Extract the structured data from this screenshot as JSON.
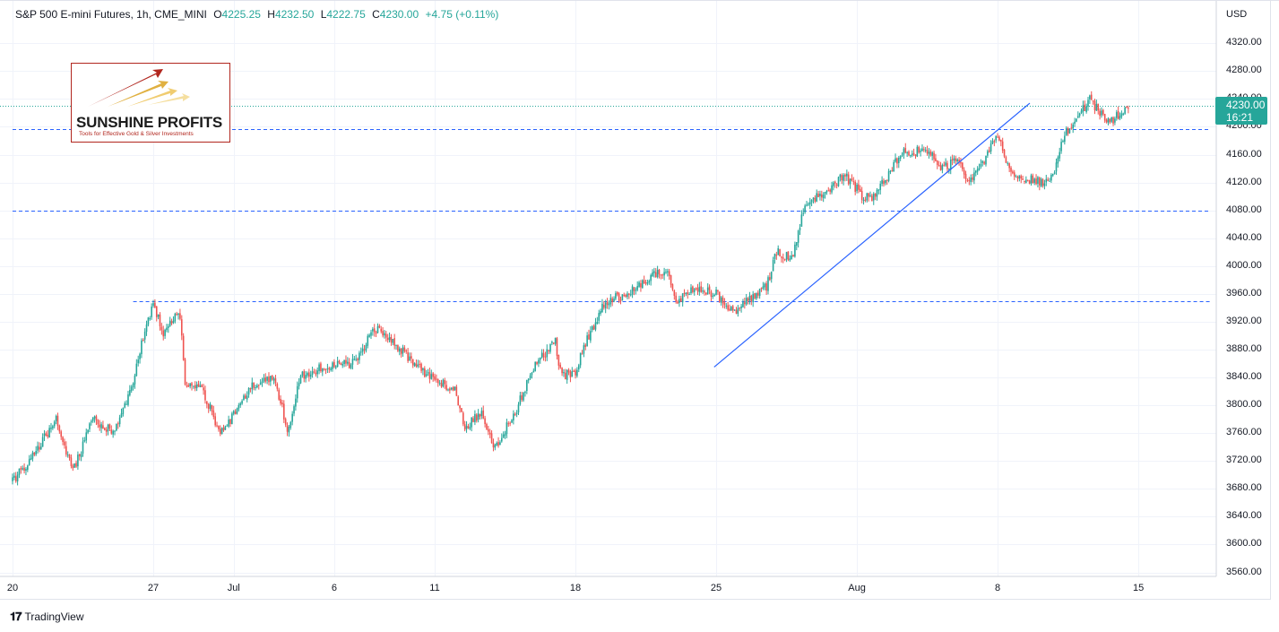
{
  "header": {
    "symbol": "S&P 500 E-mini Futures, 1h, CME_MINI",
    "open_label": "O",
    "open_value": "4225.25",
    "high_label": "H",
    "high_value": "4232.50",
    "low_label": "L",
    "low_value": "4222.75",
    "close_label": "C",
    "close_value": "4230.00",
    "change": "+4.75 (+0.11%)"
  },
  "currency": "USD",
  "price_tag": {
    "price": "4230.00",
    "countdown": "16:21"
  },
  "logo": {
    "name": "SUNSHINE PROFITS",
    "tagline": "Tools for Effective Gold & Silver Investments"
  },
  "footer": {
    "brand": "TradingView"
  },
  "colors": {
    "up": "#26a69a",
    "down": "#ef5350",
    "trendline": "#2962ff",
    "level": "#2962ff",
    "current_price_line": "#26a69a",
    "grid": "#f0f3fa"
  },
  "chart_data": {
    "type": "candlestick",
    "timeframe": "1h",
    "ylim": [
      3550,
      4345
    ],
    "y_ticks": [
      3560,
      3600,
      3640,
      3680,
      3720,
      3760,
      3800,
      3840,
      3880,
      3920,
      3960,
      4000,
      4040,
      4080,
      4120,
      4160,
      4200,
      4240,
      4280,
      4320
    ],
    "y_tick_labels": [
      "3560.00",
      "3600.00",
      "3640.00",
      "3680.00",
      "3720.00",
      "3760.00",
      "3800.00",
      "3840.00",
      "3880.00",
      "3920.00",
      "3960.00",
      "4000.00",
      "4040.00",
      "4080.00",
      "4120.00",
      "4160.00",
      "4200.00",
      "4240.00",
      "4280.00",
      "4320.00"
    ],
    "x_tick_labels": [
      "20",
      "27",
      "Jul",
      "6",
      "11",
      "18",
      "25",
      "Aug",
      "8",
      "15"
    ],
    "x_tick_days": [
      0,
      7,
      11,
      16,
      21,
      28,
      35,
      42,
      49,
      56
    ],
    "last_day": 55.5,
    "anchors": [
      [
        0,
        3690
      ],
      [
        0.8,
        3720
      ],
      [
        2.2,
        3780
      ],
      [
        3.0,
        3705
      ],
      [
        4.0,
        3780
      ],
      [
        5.0,
        3760
      ],
      [
        6.0,
        3830
      ],
      [
        6.5,
        3900
      ],
      [
        7.0,
        3945
      ],
      [
        7.5,
        3905
      ],
      [
        8.3,
        3940
      ],
      [
        8.6,
        3830
      ],
      [
        9.5,
        3820
      ],
      [
        10.3,
        3760
      ],
      [
        11.1,
        3790
      ],
      [
        12.0,
        3830
      ],
      [
        13.0,
        3840
      ],
      [
        13.7,
        3765
      ],
      [
        14.3,
        3840
      ],
      [
        15.0,
        3850
      ],
      [
        16.0,
        3860
      ],
      [
        17.0,
        3860
      ],
      [
        18.0,
        3910
      ],
      [
        19.0,
        3890
      ],
      [
        20.0,
        3860
      ],
      [
        21.0,
        3835
      ],
      [
        22.0,
        3825
      ],
      [
        22.5,
        3765
      ],
      [
        23.3,
        3790
      ],
      [
        24.0,
        3740
      ],
      [
        25.0,
        3790
      ],
      [
        26.0,
        3860
      ],
      [
        27.0,
        3890
      ],
      [
        27.3,
        3840
      ],
      [
        28.0,
        3850
      ],
      [
        28.5,
        3890
      ],
      [
        29.5,
        3950
      ],
      [
        30.5,
        3960
      ],
      [
        31.5,
        3980
      ],
      [
        32.5,
        3995
      ],
      [
        33.0,
        3950
      ],
      [
        34.0,
        3970
      ],
      [
        35.0,
        3960
      ],
      [
        36.0,
        3930
      ],
      [
        36.5,
        3950
      ],
      [
        37.5,
        3970
      ],
      [
        38.0,
        4020
      ],
      [
        38.8,
        4010
      ],
      [
        39.4,
        4090
      ],
      [
        40.5,
        4110
      ],
      [
        41.4,
        4130
      ],
      [
        42.3,
        4100
      ],
      [
        42.8,
        4100
      ],
      [
        43.6,
        4130
      ],
      [
        44.2,
        4165
      ],
      [
        45.5,
        4165
      ],
      [
        46.3,
        4140
      ],
      [
        47.0,
        4155
      ],
      [
        47.6,
        4120
      ],
      [
        48.2,
        4145
      ],
      [
        49.0,
        4190
      ],
      [
        49.7,
        4130
      ],
      [
        50.6,
        4125
      ],
      [
        51.5,
        4120
      ],
      [
        51.9,
        4145
      ],
      [
        52.3,
        4190
      ],
      [
        52.9,
        4210
      ],
      [
        53.6,
        4240
      ],
      [
        54.2,
        4215
      ],
      [
        54.7,
        4210
      ],
      [
        55.5,
        4230
      ]
    ],
    "levels": [
      {
        "price": 3950,
        "from_day": 6.0,
        "to_day": 60.0,
        "style": "dashed"
      },
      {
        "price": 4080,
        "from_day": 0,
        "to_day": 60.0,
        "style": "dashed"
      },
      {
        "price": 4197,
        "from_day": 0,
        "to_day": 60.0,
        "style": "dashed"
      },
      {
        "price": 4230,
        "from_day": 0,
        "to_day": 60.0,
        "style": "dotted"
      }
    ],
    "trendline": {
      "start": [
        34.9,
        3855
      ],
      "end": [
        50.6,
        4234
      ]
    }
  }
}
